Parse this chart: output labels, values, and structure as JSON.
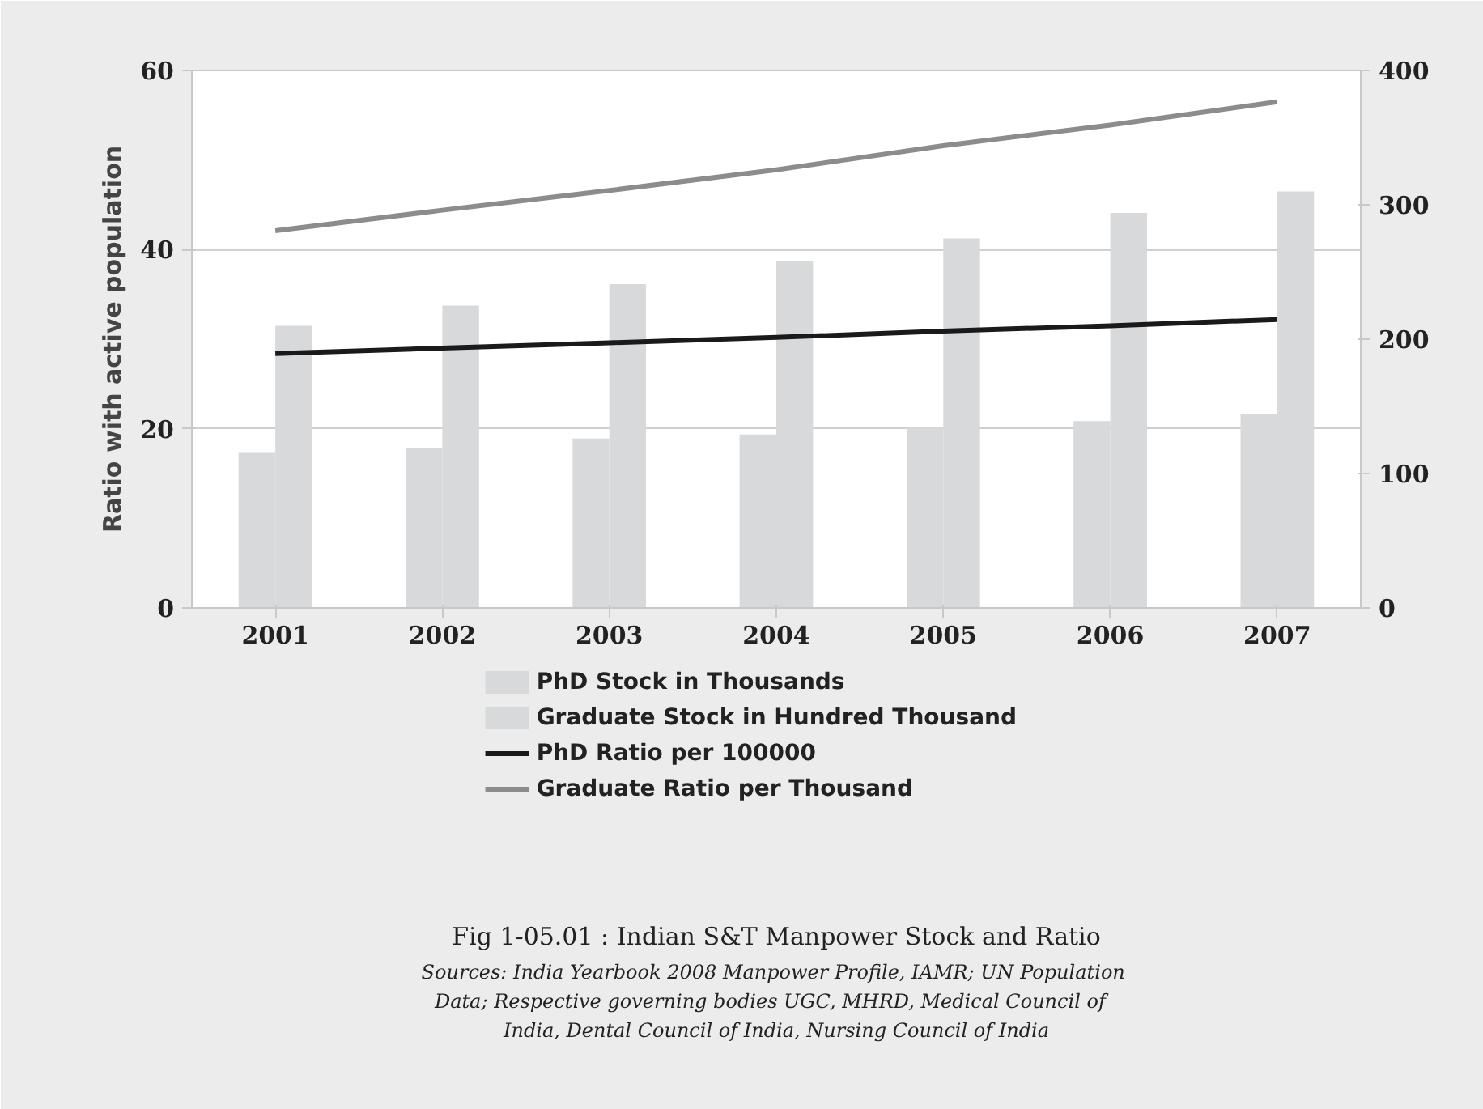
{
  "chart_data": {
    "type": "bar",
    "categories": [
      "2001",
      "2002",
      "2003",
      "2004",
      "2005",
      "2006",
      "2007"
    ],
    "series": [
      {
        "name": "PhD Stock in Thousands",
        "type": "bar",
        "axis": "y2",
        "color": "#d8d9db",
        "values": [
          116,
          119,
          126,
          129,
          134,
          139,
          144
        ]
      },
      {
        "name": "Graduate Stock in Hundred Thousand",
        "type": "bar",
        "axis": "y2",
        "color": "#d8d9db",
        "values": [
          210,
          225,
          241,
          258,
          275,
          294,
          310
        ]
      },
      {
        "name": "PhD Ratio per 100000",
        "type": "line",
        "axis": "y",
        "color": "#1a1a1a",
        "values": [
          28.4,
          29.0,
          29.6,
          30.2,
          30.9,
          31.5,
          32.2
        ]
      },
      {
        "name": "Graduate Ratio per Thousand",
        "type": "line",
        "axis": "y",
        "color": "#8c8c8c",
        "values": [
          42.1,
          44.4,
          46.6,
          48.9,
          51.6,
          53.9,
          56.5
        ]
      }
    ],
    "ylabel": "Ratio with active population",
    "ylim": [
      0,
      60
    ],
    "yticks": [
      0,
      20,
      40,
      60
    ],
    "y2lim": [
      0,
      400
    ],
    "y2ticks": [
      0,
      100,
      200,
      300,
      400
    ],
    "grid": "y",
    "legend": "bottom",
    "title": "Fig 1-05.01 : Indian S&T Manpower Stock and Ratio",
    "annotations": [
      "Sources: India Yearbook 2008 Manpower Profile, IAMR;  UN Population",
      "Data; Respective governing bodies UGC,  MHRD,  Medical Council of",
      "India, Dental Council of India, Nursing Council of India"
    ]
  }
}
